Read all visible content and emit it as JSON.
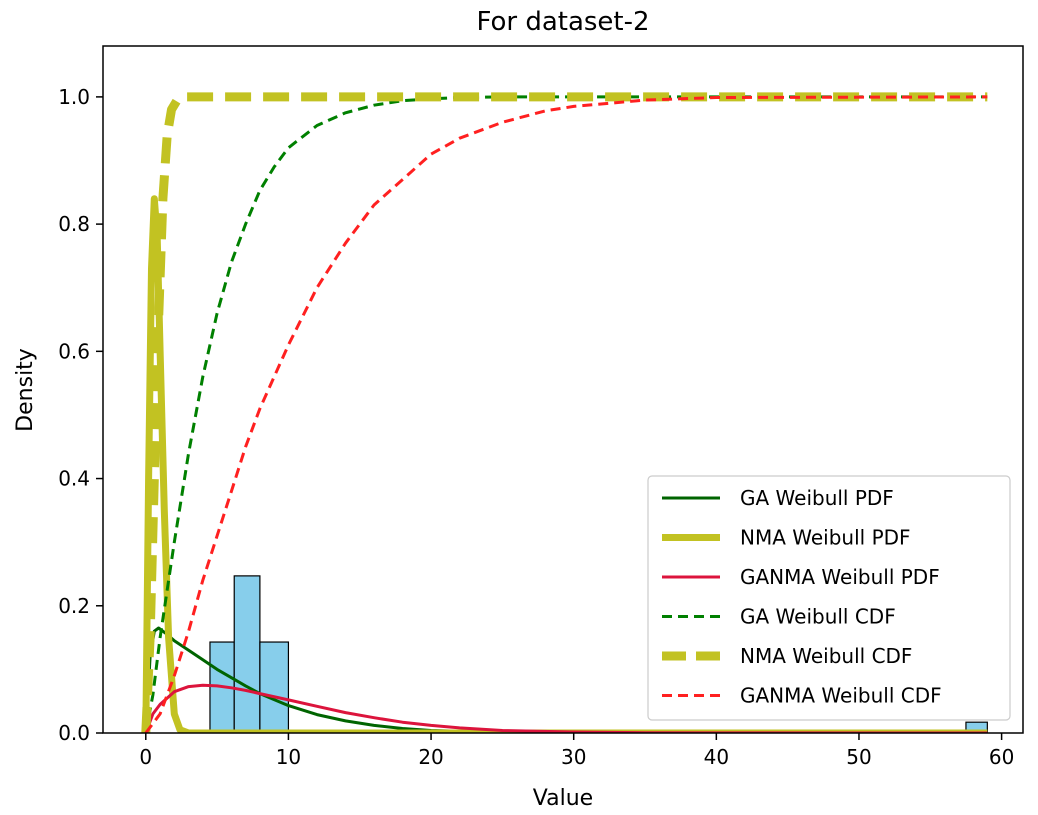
{
  "chart_data": {
    "type": "line",
    "title": "For dataset-2",
    "xlabel": "Value",
    "ylabel": "Density",
    "xlim": [
      -3,
      61.5
    ],
    "ylim": [
      0,
      1.08
    ],
    "xticks": [
      0,
      10,
      20,
      30,
      40,
      50,
      60
    ],
    "yticks": [
      0.0,
      0.2,
      0.4,
      0.6,
      0.8,
      1.0
    ],
    "ytick_labels": [
      "0.0",
      "0.2",
      "0.4",
      "0.6",
      "0.8",
      "1.0"
    ],
    "grid": false,
    "legend_position": "lower-right",
    "histogram": {
      "color": "#87ceeb",
      "edge_color": "#000000",
      "bins": [
        {
          "x0": 4.5,
          "x1": 6.2,
          "density": 0.143
        },
        {
          "x0": 6.2,
          "x1": 8.0,
          "density": 0.247
        },
        {
          "x0": 8.0,
          "x1": 10.0,
          "density": 0.143
        },
        {
          "x0": 57.5,
          "x1": 59.0,
          "density": 0.017
        }
      ]
    },
    "series": [
      {
        "name": "GA Weibull PDF",
        "kind": "pdf",
        "color": "#006400",
        "dash": "solid",
        "width": 3,
        "x": [
          0,
          0.3,
          0.6,
          0.9,
          1.5,
          2,
          3,
          4,
          5,
          6,
          7,
          8,
          10,
          12,
          14,
          16,
          18,
          20,
          25,
          30,
          40,
          59
        ],
        "y": [
          0,
          0.12,
          0.16,
          0.165,
          0.155,
          0.145,
          0.13,
          0.115,
          0.1,
          0.087,
          0.074,
          0.062,
          0.043,
          0.029,
          0.019,
          0.012,
          0.007,
          0.004,
          0.001,
          0.0003,
          0,
          0
        ]
      },
      {
        "name": "NMA Weibull PDF",
        "kind": "pdf",
        "color": "#c2c222",
        "dash": "solid",
        "width": 7,
        "x": [
          0,
          0.2,
          0.4,
          0.6,
          0.8,
          1.0,
          1.3,
          1.6,
          2.0,
          2.4,
          3,
          4,
          59
        ],
        "y": [
          0,
          0.4,
          0.73,
          0.84,
          0.78,
          0.6,
          0.35,
          0.15,
          0.03,
          0.005,
          0,
          0,
          0
        ]
      },
      {
        "name": "GANMA Weibull PDF",
        "kind": "pdf",
        "color": "#dc143c",
        "dash": "solid",
        "width": 3,
        "x": [
          0,
          0.5,
          1,
          2,
          3,
          4,
          5,
          6,
          7,
          8,
          10,
          12,
          14,
          16,
          18,
          20,
          22,
          25,
          30,
          35,
          40,
          59
        ],
        "y": [
          0,
          0.03,
          0.045,
          0.065,
          0.073,
          0.075,
          0.074,
          0.071,
          0.067,
          0.062,
          0.052,
          0.042,
          0.032,
          0.024,
          0.017,
          0.012,
          0.008,
          0.004,
          0.0015,
          0.0005,
          0.0001,
          0
        ]
      },
      {
        "name": "GA Weibull CDF",
        "kind": "cdf",
        "color": "#008000",
        "dash": "dashed",
        "width": 3,
        "x": [
          0,
          0.5,
          1,
          2,
          3,
          4,
          5,
          6,
          7,
          8,
          9,
          10,
          12,
          14,
          16,
          18,
          20,
          22,
          25,
          30,
          59
        ],
        "y": [
          0,
          0.06,
          0.15,
          0.3,
          0.44,
          0.56,
          0.66,
          0.74,
          0.8,
          0.853,
          0.89,
          0.92,
          0.955,
          0.975,
          0.987,
          0.994,
          0.997,
          0.999,
          1.0,
          1.0,
          1.0
        ]
      },
      {
        "name": "NMA Weibull CDF",
        "kind": "cdf",
        "color": "#c2c222",
        "dash": "dashed",
        "width": 9,
        "x": [
          0,
          0.3,
          0.6,
          0.9,
          1.2,
          1.5,
          1.8,
          2.2,
          2.6,
          3,
          59
        ],
        "y": [
          0,
          0.15,
          0.4,
          0.65,
          0.84,
          0.94,
          0.98,
          0.995,
          1.0,
          1.0,
          1.0
        ]
      },
      {
        "name": "GANMA Weibull CDF",
        "kind": "cdf",
        "color": "#ff2020",
        "dash": "dashed",
        "width": 3,
        "x": [
          0,
          1,
          2,
          3,
          4,
          5,
          6,
          7,
          8,
          10,
          12,
          14,
          16,
          18,
          20,
          22,
          25,
          28,
          30,
          35,
          40,
          59
        ],
        "y": [
          0,
          0.03,
          0.09,
          0.16,
          0.24,
          0.31,
          0.38,
          0.45,
          0.51,
          0.61,
          0.7,
          0.77,
          0.83,
          0.87,
          0.91,
          0.935,
          0.96,
          0.978,
          0.985,
          0.995,
          0.999,
          1.0
        ]
      }
    ]
  }
}
